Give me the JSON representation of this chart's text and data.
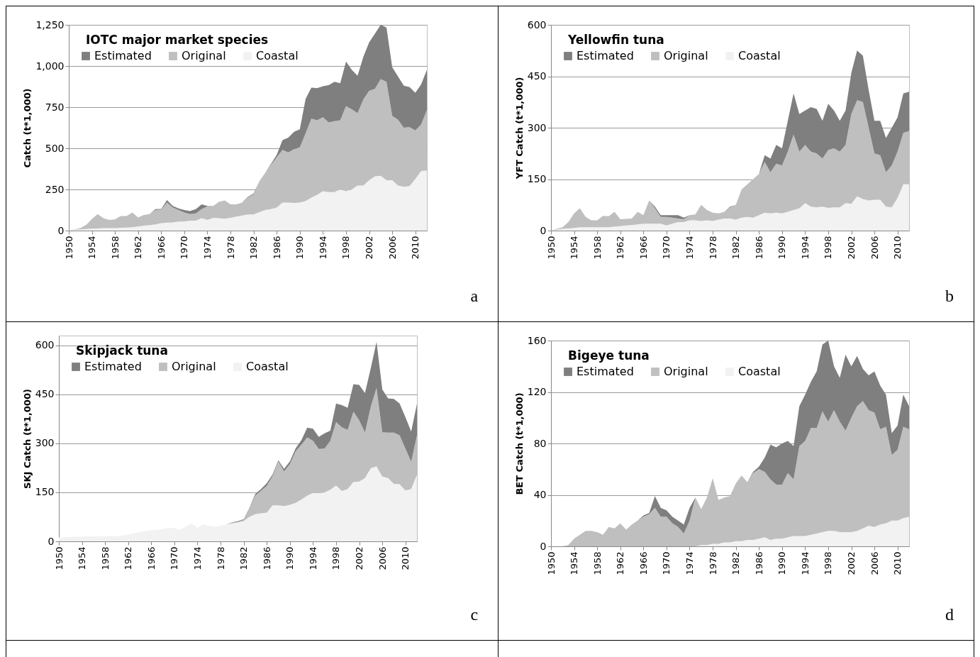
{
  "chart_data": [
    {
      "type": "area",
      "title": "IOTC major market species",
      "ylabel": "Catch (t*1,000)",
      "stacked": true,
      "grid": "y",
      "legend": "top left",
      "annotations": [
        "a"
      ],
      "x": [
        1950,
        1951,
        1952,
        1953,
        1954,
        1955,
        1956,
        1957,
        1958,
        1959,
        1960,
        1961,
        1962,
        1963,
        1964,
        1965,
        1966,
        1967,
        1968,
        1969,
        1970,
        1971,
        1972,
        1973,
        1974,
        1975,
        1976,
        1977,
        1978,
        1979,
        1980,
        1981,
        1982,
        1983,
        1984,
        1985,
        1986,
        1987,
        1988,
        1989,
        1990,
        1991,
        1992,
        1993,
        1994,
        1995,
        1996,
        1997,
        1998,
        1999,
        2000,
        2001,
        2002,
        2003,
        2004,
        2005,
        2006,
        2007,
        2008,
        2009,
        2010,
        2011,
        2012
      ],
      "xlim": [
        1950,
        2012
      ],
      "xticks": [
        1950,
        1954,
        1958,
        1962,
        1966,
        1970,
        1974,
        1978,
        1982,
        1986,
        1990,
        1994,
        1998,
        2002,
        2006,
        2010
      ],
      "ylim": [
        0,
        1250
      ],
      "yticks": [
        0,
        250,
        500,
        750,
        {
          "value": 1000,
          "label": "1,000"
        },
        {
          "value": 1250,
          "label": "1,250"
        }
      ],
      "series": [
        {
          "name": "Coastal",
          "color": "#f2f2f2",
          "values": [
            2,
            5,
            8,
            10,
            12,
            13,
            15,
            15,
            15,
            17,
            18,
            20,
            25,
            30,
            33,
            38,
            45,
            48,
            50,
            55,
            55,
            60,
            60,
            75,
            65,
            78,
            75,
            72,
            78,
            85,
            92,
            98,
            98,
            112,
            125,
            130,
            140,
            170,
            170,
            168,
            170,
            180,
            200,
            218,
            239,
            234,
            234,
            250,
            239,
            250,
            274,
            274,
            306,
            330,
            333,
            306,
            306,
            274,
            266,
            271,
            314,
            362,
            365
          ]
        },
        {
          "name": "Original",
          "color": "#bfbfbf",
          "values": [
            0,
            3,
            7,
            25,
            58,
            87,
            60,
            50,
            53,
            71,
            70,
            90,
            55,
            65,
            67,
            87,
            83,
            122,
            90,
            70,
            55,
            40,
            45,
            55,
            83,
            72,
            100,
            111,
            82,
            75,
            78,
            102,
            122,
            188,
            225,
            270,
            305,
            320,
            305,
            327,
            335,
            410,
            480,
            452,
            450,
            423,
            431,
            420,
            517,
            487,
            439,
            523,
            543,
            531,
            587,
            598,
            391,
            399,
            359,
            357,
            295,
            282,
            368
          ]
        },
        {
          "name": "Estimated",
          "color": "#7f7f7f",
          "values": [
            0,
            0,
            0,
            0,
            0,
            0,
            0,
            0,
            0,
            0,
            0,
            0,
            0,
            0,
            0,
            5,
            4,
            15,
            10,
            10,
            15,
            18,
            25,
            30,
            2,
            0,
            0,
            0,
            0,
            0,
            0,
            5,
            5,
            0,
            0,
            5,
            15,
            60,
            90,
            105,
            110,
            210,
            188,
            195,
            188,
            227,
            239,
            226,
            271,
            239,
            228,
            259,
            294,
            335,
            330,
            330,
            295,
            263,
            255,
            244,
            228,
            244,
            243
          ]
        }
      ]
    },
    {
      "type": "area",
      "title": "Yellowfin tuna",
      "ylabel": "YFT Catch (t*1,000)",
      "stacked": true,
      "grid": "y",
      "legend": "top left",
      "annotations": [
        "b"
      ],
      "x": [
        1950,
        1951,
        1952,
        1953,
        1954,
        1955,
        1956,
        1957,
        1958,
        1959,
        1960,
        1961,
        1962,
        1963,
        1964,
        1965,
        1966,
        1967,
        1968,
        1969,
        1970,
        1971,
        1972,
        1973,
        1974,
        1975,
        1976,
        1977,
        1978,
        1979,
        1980,
        1981,
        1982,
        1983,
        1984,
        1985,
        1986,
        1987,
        1988,
        1989,
        1990,
        1991,
        1992,
        1993,
        1994,
        1995,
        1996,
        1997,
        1998,
        1999,
        2000,
        2001,
        2002,
        2003,
        2004,
        2005,
        2006,
        2007,
        2008,
        2009,
        2010,
        2011,
        2012
      ],
      "xlim": [
        1950,
        2012
      ],
      "xticks": [
        1950,
        1954,
        1958,
        1962,
        1966,
        1970,
        1974,
        1978,
        1982,
        1986,
        1990,
        1994,
        1998,
        2002,
        2006,
        2010
      ],
      "ylim": [
        0,
        600
      ],
      "yticks": [
        0,
        150,
        300,
        450,
        600
      ],
      "series": [
        {
          "name": "Coastal",
          "color": "#f2f2f2",
          "values": [
            0,
            3,
            5,
            6,
            8,
            10,
            10,
            10,
            10,
            10,
            10,
            12,
            13,
            15,
            16,
            18,
            20,
            20,
            20,
            20,
            15,
            20,
            25,
            25,
            30,
            30,
            28,
            30,
            28,
            32,
            35,
            35,
            32,
            38,
            40,
            38,
            45,
            52,
            50,
            52,
            50,
            55,
            60,
            65,
            80,
            70,
            68,
            70,
            66,
            68,
            68,
            80,
            78,
            100,
            92,
            88,
            90,
            90,
            70,
            68,
            95,
            135,
            135
          ]
        },
        {
          "name": "Original",
          "color": "#bfbfbf",
          "values": [
            0,
            2,
            5,
            19,
            42,
            55,
            30,
            20,
            20,
            33,
            32,
            43,
            20,
            19,
            19,
            37,
            25,
            68,
            45,
            20,
            25,
            18,
            10,
            8,
            15,
            17,
            47,
            30,
            24,
            18,
            20,
            33,
            43,
            82,
            95,
            112,
            120,
            148,
            120,
            143,
            140,
            175,
            220,
            165,
            170,
            160,
            157,
            140,
            169,
            172,
            162,
            170,
            262,
            280,
            283,
            212,
            135,
            130,
            100,
            122,
            135,
            150,
            155
          ]
        },
        {
          "name": "Estimated",
          "color": "#7f7f7f",
          "values": [
            0,
            0,
            0,
            0,
            0,
            0,
            0,
            0,
            0,
            0,
            0,
            0,
            0,
            0,
            0,
            0,
            0,
            0,
            5,
            5,
            5,
            7,
            10,
            5,
            0,
            0,
            0,
            0,
            0,
            0,
            0,
            2,
            0,
            0,
            0,
            0,
            0,
            20,
            40,
            55,
            50,
            90,
            120,
            110,
            100,
            130,
            130,
            110,
            135,
            110,
            90,
            100,
            120,
            145,
            135,
            110,
            95,
            100,
            100,
            110,
            100,
            115,
            115
          ]
        }
      ]
    },
    {
      "type": "area",
      "title": "Skipjack tuna",
      "ylabel": "SKJ Catch (t*1,000)",
      "stacked": true,
      "grid": "y",
      "legend": "top left",
      "annotations": [
        "c"
      ],
      "x": [
        1950,
        1951,
        1952,
        1953,
        1954,
        1955,
        1956,
        1957,
        1958,
        1959,
        1960,
        1961,
        1962,
        1963,
        1964,
        1965,
        1966,
        1967,
        1968,
        1969,
        1970,
        1971,
        1972,
        1973,
        1974,
        1975,
        1976,
        1977,
        1978,
        1979,
        1980,
        1981,
        1982,
        1983,
        1984,
        1985,
        1986,
        1987,
        1988,
        1989,
        1990,
        1991,
        1992,
        1993,
        1994,
        1995,
        1996,
        1997,
        1998,
        1999,
        2000,
        2001,
        2002,
        2003,
        2004,
        2005,
        2006,
        2007,
        2008,
        2009,
        2010,
        2011,
        2012
      ],
      "xlim": [
        1950,
        2012
      ],
      "xticks": [
        1950,
        1954,
        1958,
        1962,
        1966,
        1970,
        1974,
        1978,
        1982,
        1986,
        1990,
        1994,
        1998,
        2002,
        2006,
        2010
      ],
      "ylim": [
        0,
        630
      ],
      "yticks": [
        0,
        150,
        300,
        450,
        600
      ],
      "series": [
        {
          "name": "Coastal",
          "color": "#f2f2f2",
          "values": [
            12,
            12,
            13,
            14,
            14,
            15,
            15,
            16,
            16,
            15,
            16,
            18,
            21,
            25,
            29,
            32,
            34,
            35,
            38,
            42,
            40,
            36,
            45,
            55,
            42,
            52,
            48,
            45,
            48,
            52,
            55,
            58,
            62,
            75,
            83,
            86,
            88,
            110,
            110,
            108,
            112,
            118,
            128,
            140,
            148,
            148,
            150,
            158,
            171,
            154,
            160,
            182,
            183,
            194,
            224,
            230,
            198,
            194,
            176,
            175,
            156,
            160,
            204
          ]
        },
        {
          "name": "Original",
          "color": "#bfbfbf",
          "values": [
            0,
            0,
            0,
            0,
            0,
            0,
            0,
            0,
            0,
            0,
            0,
            0,
            0,
            0,
            0,
            0,
            0,
            0,
            0,
            0,
            0,
            0,
            0,
            0,
            0,
            0,
            0,
            0,
            0,
            0,
            2,
            2,
            4,
            25,
            57,
            69,
            82,
            90,
            135,
            106,
            124,
            158,
            168,
            178,
            160,
            135,
            134,
            150,
            194,
            195,
            181,
            215,
            188,
            139,
            188,
            240,
            136,
            139,
            157,
            150,
            128,
            84,
            121
          ]
        },
        {
          "name": "Estimated",
          "color": "#7f7f7f",
          "values": [
            0,
            0,
            0,
            0,
            0,
            0,
            0,
            0,
            0,
            0,
            0,
            0,
            0,
            0,
            0,
            0,
            0,
            0,
            0,
            0,
            0,
            0,
            0,
            0,
            0,
            0,
            0,
            0,
            0,
            0,
            1,
            2,
            2,
            2,
            5,
            5,
            8,
            5,
            3,
            8,
            9,
            9,
            14,
            30,
            37,
            37,
            47,
            31,
            57,
            68,
            68,
            84,
            108,
            121,
            118,
            141,
            131,
            105,
            103,
            97,
            96,
            92,
            96
          ]
        }
      ]
    },
    {
      "type": "area",
      "title": "Bigeye tuna",
      "ylabel": "BET Catch (t*1,000)",
      "stacked": true,
      "grid": "y",
      "legend": "top left",
      "annotations": [
        "d"
      ],
      "x": [
        1950,
        1951,
        1952,
        1953,
        1954,
        1955,
        1956,
        1957,
        1958,
        1959,
        1960,
        1961,
        1962,
        1963,
        1964,
        1965,
        1966,
        1967,
        1968,
        1969,
        1970,
        1971,
        1972,
        1973,
        1974,
        1975,
        1976,
        1977,
        1978,
        1979,
        1980,
        1981,
        1982,
        1983,
        1984,
        1985,
        1986,
        1987,
        1988,
        1989,
        1990,
        1991,
        1992,
        1993,
        1994,
        1995,
        1996,
        1997,
        1998,
        1999,
        2000,
        2001,
        2002,
        2003,
        2004,
        2005,
        2006,
        2007,
        2008,
        2009,
        2010,
        2011,
        2012
      ],
      "xlim": [
        1950,
        2012
      ],
      "xticks": [
        1950,
        1954,
        1958,
        1962,
        1966,
        1970,
        1974,
        1978,
        1982,
        1986,
        1990,
        1994,
        1998,
        2002,
        2006,
        2010
      ],
      "ylim": [
        0,
        160
      ],
      "yticks": [
        0,
        40,
        80,
        120,
        160
      ],
      "series": [
        {
          "name": "Coastal",
          "color": "#f2f2f2",
          "values": [
            0,
            0,
            0,
            0,
            0,
            0,
            0,
            0,
            0,
            0,
            0,
            0,
            0,
            0,
            0,
            0,
            0,
            0,
            0,
            0,
            0,
            0,
            0,
            0,
            0,
            0,
            1,
            1,
            2,
            2,
            3,
            3,
            4,
            4,
            5,
            5,
            6,
            7,
            5,
            6,
            6,
            7,
            8,
            8,
            8,
            9,
            10,
            11,
            12,
            12,
            11,
            11,
            11,
            12,
            14,
            16,
            15,
            17,
            18,
            20,
            20,
            22,
            23
          ]
        },
        {
          "name": "Original",
          "color": "#bfbfbf",
          "values": [
            0,
            0,
            0,
            1,
            6,
            9,
            12,
            12,
            11,
            9,
            15,
            14,
            18,
            13,
            17,
            20,
            23,
            25,
            30,
            23,
            23,
            18,
            15,
            10,
            20,
            38,
            28,
            37,
            51,
            34,
            35,
            36,
            45,
            51,
            45,
            52,
            54,
            51,
            47,
            42,
            42,
            50,
            44,
            70,
            74,
            83,
            82,
            94,
            85,
            94,
            86,
            79,
            89,
            97,
            99,
            90,
            89,
            74,
            75,
            51,
            55,
            71,
            68
          ]
        },
        {
          "name": "Estimated",
          "color": "#7f7f7f",
          "values": [
            0,
            0,
            0,
            0,
            0,
            0,
            0,
            0,
            0,
            0,
            0,
            0,
            0,
            0,
            0,
            0,
            1,
            1,
            9,
            7,
            5,
            5,
            5,
            7,
            10,
            0,
            0,
            0,
            0,
            0,
            0,
            0,
            0,
            0,
            0,
            1,
            2,
            11,
            27,
            29,
            32,
            25,
            26,
            31,
            36,
            36,
            44,
            52,
            63,
            34,
            34,
            59,
            40,
            39,
            25,
            27,
            32,
            34,
            25,
            17,
            19,
            25,
            18
          ]
        }
      ]
    }
  ]
}
